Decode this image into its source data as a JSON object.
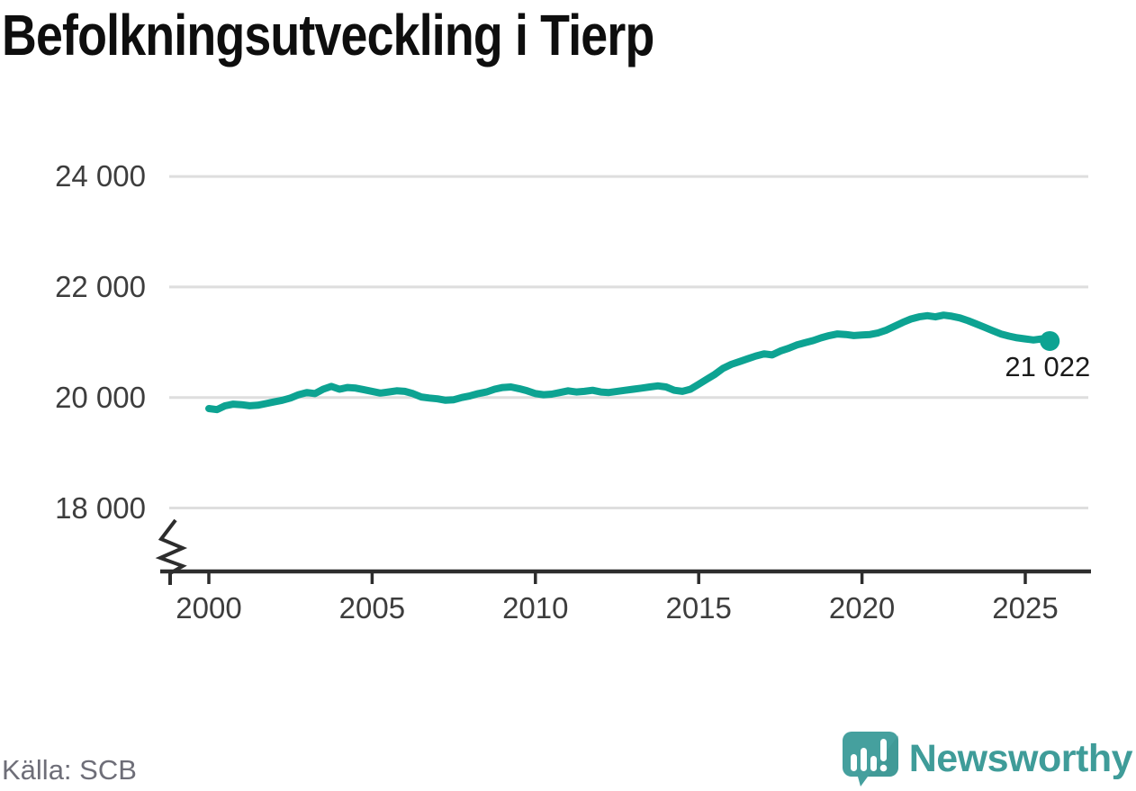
{
  "title": "Befolkningsutveckling i Tierp",
  "source": "Källa: SCB",
  "branding": {
    "name": "Newsworthy",
    "icon": "newsworthy-bar-chart-bubble-icon"
  },
  "colors": {
    "line": "#0da392",
    "grid": "#dedede",
    "axis": "#2d2d2d",
    "tick_text": "#3d3d3d",
    "title_text": "#0e0e0e",
    "source_text": "#6e6e78",
    "brand_teal": "#3f9c99",
    "brand_teal_dark": "#35908e"
  },
  "chart_data": {
    "type": "line",
    "title": "Befolkningsutveckling i Tierp",
    "xlabel": "",
    "ylabel": "",
    "grid": "horizontal-only",
    "legend": "none",
    "axis_break_below": 18000,
    "x_ticks": [
      2000,
      2005,
      2010,
      2015,
      2020,
      2025
    ],
    "x_range": [
      1999.5,
      2026.5
    ],
    "y_ticks": [
      {
        "value": 24000,
        "label": "24 000"
      },
      {
        "value": 22000,
        "label": "22 000"
      },
      {
        "value": 20000,
        "label": "20 000"
      },
      {
        "value": 18000,
        "label": "18 000"
      }
    ],
    "end_label": {
      "x": 2025.75,
      "value": 21022,
      "label": "21 022"
    },
    "series": [
      {
        "name": "Befolkning i Tierp",
        "color": "#0da392",
        "points": [
          [
            2000.0,
            19800
          ],
          [
            2000.25,
            19780
          ],
          [
            2000.5,
            19850
          ],
          [
            2000.75,
            19880
          ],
          [
            2001.0,
            19870
          ],
          [
            2001.25,
            19850
          ],
          [
            2001.5,
            19860
          ],
          [
            2001.75,
            19890
          ],
          [
            2002.0,
            19920
          ],
          [
            2002.25,
            19950
          ],
          [
            2002.5,
            19990
          ],
          [
            2002.75,
            20050
          ],
          [
            2003.0,
            20090
          ],
          [
            2003.25,
            20070
          ],
          [
            2003.5,
            20150
          ],
          [
            2003.75,
            20200
          ],
          [
            2004.0,
            20150
          ],
          [
            2004.25,
            20180
          ],
          [
            2004.5,
            20170
          ],
          [
            2004.75,
            20140
          ],
          [
            2005.0,
            20110
          ],
          [
            2005.25,
            20080
          ],
          [
            2005.5,
            20100
          ],
          [
            2005.75,
            20120
          ],
          [
            2006.0,
            20110
          ],
          [
            2006.25,
            20070
          ],
          [
            2006.5,
            20010
          ],
          [
            2006.75,
            19990
          ],
          [
            2007.0,
            19975
          ],
          [
            2007.25,
            19950
          ],
          [
            2007.5,
            19960
          ],
          [
            2007.75,
            20000
          ],
          [
            2008.0,
            20030
          ],
          [
            2008.25,
            20070
          ],
          [
            2008.5,
            20100
          ],
          [
            2008.75,
            20150
          ],
          [
            2009.0,
            20180
          ],
          [
            2009.25,
            20190
          ],
          [
            2009.5,
            20160
          ],
          [
            2009.75,
            20120
          ],
          [
            2010.0,
            20070
          ],
          [
            2010.25,
            20050
          ],
          [
            2010.5,
            20060
          ],
          [
            2010.75,
            20090
          ],
          [
            2011.0,
            20120
          ],
          [
            2011.25,
            20100
          ],
          [
            2011.5,
            20110
          ],
          [
            2011.75,
            20130
          ],
          [
            2012.0,
            20100
          ],
          [
            2012.25,
            20090
          ],
          [
            2012.5,
            20110
          ],
          [
            2012.75,
            20130
          ],
          [
            2013.0,
            20150
          ],
          [
            2013.25,
            20170
          ],
          [
            2013.5,
            20190
          ],
          [
            2013.75,
            20210
          ],
          [
            2014.0,
            20190
          ],
          [
            2014.25,
            20130
          ],
          [
            2014.5,
            20110
          ],
          [
            2014.75,
            20150
          ],
          [
            2015.0,
            20240
          ],
          [
            2015.25,
            20330
          ],
          [
            2015.5,
            20420
          ],
          [
            2015.75,
            20530
          ],
          [
            2016.0,
            20600
          ],
          [
            2016.25,
            20650
          ],
          [
            2016.5,
            20700
          ],
          [
            2016.75,
            20750
          ],
          [
            2017.0,
            20790
          ],
          [
            2017.25,
            20770
          ],
          [
            2017.5,
            20840
          ],
          [
            2017.75,
            20890
          ],
          [
            2018.0,
            20950
          ],
          [
            2018.25,
            20990
          ],
          [
            2018.5,
            21030
          ],
          [
            2018.75,
            21080
          ],
          [
            2019.0,
            21120
          ],
          [
            2019.25,
            21150
          ],
          [
            2019.5,
            21140
          ],
          [
            2019.75,
            21120
          ],
          [
            2020.0,
            21130
          ],
          [
            2020.25,
            21140
          ],
          [
            2020.5,
            21170
          ],
          [
            2020.75,
            21220
          ],
          [
            2021.0,
            21290
          ],
          [
            2021.25,
            21360
          ],
          [
            2021.5,
            21420
          ],
          [
            2021.75,
            21460
          ],
          [
            2022.0,
            21480
          ],
          [
            2022.25,
            21460
          ],
          [
            2022.5,
            21490
          ],
          [
            2022.75,
            21470
          ],
          [
            2023.0,
            21440
          ],
          [
            2023.25,
            21390
          ],
          [
            2023.5,
            21330
          ],
          [
            2023.75,
            21270
          ],
          [
            2024.0,
            21210
          ],
          [
            2024.25,
            21150
          ],
          [
            2024.5,
            21110
          ],
          [
            2024.75,
            21080
          ],
          [
            2025.0,
            21060
          ],
          [
            2025.25,
            21040
          ],
          [
            2025.5,
            21060
          ],
          [
            2025.75,
            21022
          ]
        ]
      }
    ]
  }
}
